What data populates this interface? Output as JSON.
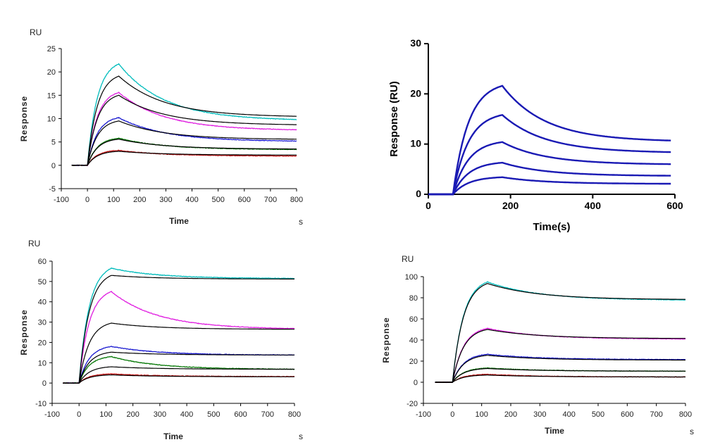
{
  "chart_data": [
    {
      "type": "line",
      "ylabel": "Response",
      "xlabel": "Time",
      "y_unit_label": "RU",
      "x_unit_label": "s",
      "xlim": [
        -100,
        800
      ],
      "ylim": [
        -5,
        25
      ],
      "xticks": [
        -100,
        0,
        100,
        200,
        300,
        400,
        500,
        600,
        700,
        800
      ],
      "yticks": [
        -5,
        0,
        5,
        10,
        15,
        20,
        25
      ],
      "grid": false,
      "legend": "none",
      "baseline_start": -60,
      "injection_start": 0,
      "injection_end": 120,
      "x_end": 800,
      "series": [
        {
          "color": "#00bcbc",
          "peak": 21.7,
          "final": 9.8
        },
        {
          "color": "#e01ee0",
          "peak": 15.6,
          "final": 7.6
        },
        {
          "color": "#1a1ad0",
          "peak": 10.2,
          "final": 5.2
        },
        {
          "color": "#0a7a0a",
          "peak": 5.8,
          "final": 3.4
        },
        {
          "color": "#c01010",
          "peak": 3.2,
          "final": 2.0
        }
      ],
      "fit": [
        {
          "peak": 19.1,
          "final": 10.5
        },
        {
          "peak": 15.0,
          "final": 8.7
        },
        {
          "peak": 9.5,
          "final": 5.6
        },
        {
          "peak": 5.6,
          "final": 3.5
        },
        {
          "peak": 3.0,
          "final": 2.2
        }
      ]
    },
    {
      "type": "line",
      "ylabel": "Response (RU)",
      "xlabel": "Time(s)",
      "xlim": [
        0,
        600
      ],
      "ylim": [
        0,
        30
      ],
      "xticks": [
        0,
        200,
        400,
        600
      ],
      "yticks": [
        0,
        10,
        20,
        30
      ],
      "grid": false,
      "legend": "none",
      "baseline_start": 0,
      "injection_start": 60,
      "injection_end": 180,
      "x_end": 590,
      "series": [
        {
          "color": "#1a1ab4",
          "peak": 21.6,
          "final": 10.7
        },
        {
          "color": "#1a1ab4",
          "peak": 15.8,
          "final": 8.4
        },
        {
          "color": "#1a1ab4",
          "peak": 10.4,
          "final": 6.0
        },
        {
          "color": "#1a1ab4",
          "peak": 6.3,
          "final": 3.7
        },
        {
          "color": "#1a1ab4",
          "peak": 3.4,
          "final": 2.1
        }
      ]
    },
    {
      "type": "line",
      "ylabel": "Response",
      "xlabel": "Time",
      "y_unit_label": "RU",
      "x_unit_label": "s",
      "xlim": [
        -100,
        800
      ],
      "ylim": [
        -10,
        60
      ],
      "xticks": [
        -100,
        0,
        100,
        200,
        300,
        400,
        500,
        600,
        700,
        800
      ],
      "yticks": [
        -10,
        0,
        10,
        20,
        30,
        40,
        50,
        60
      ],
      "grid": false,
      "legend": "none",
      "baseline_start": -60,
      "injection_start": 0,
      "injection_end": 120,
      "x_end": 800,
      "series": [
        {
          "color": "#00bcbc",
          "peak": 56.5,
          "final": 51.5
        },
        {
          "color": "#e01ee0",
          "peak": 45.0,
          "final": 26.8
        },
        {
          "color": "#1a1ad0",
          "peak": 18.0,
          "final": 13.8
        },
        {
          "color": "#0a7a0a",
          "peak": 13.0,
          "final": 6.8
        },
        {
          "color": "#c01010",
          "peak": 4.5,
          "final": 3.2
        }
      ],
      "fit": [
        {
          "peak": 53.0,
          "final": 51.2
        },
        {
          "peak": 29.5,
          "final": 26.5
        },
        {
          "peak": 15.2,
          "final": 13.8
        },
        {
          "peak": 8.0,
          "final": 6.8
        },
        {
          "peak": 4.0,
          "final": 3.1
        }
      ]
    },
    {
      "type": "line",
      "ylabel": "Response",
      "xlabel": "Time",
      "y_unit_label": "RU",
      "x_unit_label": "s",
      "xlim": [
        -100,
        800
      ],
      "ylim": [
        -20,
        100
      ],
      "xticks": [
        -100,
        0,
        100,
        200,
        300,
        400,
        500,
        600,
        700,
        800
      ],
      "yticks": [
        -20,
        0,
        20,
        40,
        60,
        80,
        100
      ],
      "grid": false,
      "legend": "none",
      "baseline_start": -60,
      "injection_start": 0,
      "injection_end": 120,
      "x_end": 800,
      "series": [
        {
          "color": "#00bcbc",
          "peak": 95.0,
          "final": 78.0
        },
        {
          "color": "#e01ee0",
          "peak": 51.0,
          "final": 41.0
        },
        {
          "color": "#1a1ad0",
          "peak": 26.5,
          "final": 21.5
        },
        {
          "color": "#0a7a0a",
          "peak": 13.5,
          "final": 10.5
        },
        {
          "color": "#c01010",
          "peak": 7.5,
          "final": 5.0
        }
      ],
      "fit": [
        {
          "peak": 93.5,
          "final": 78.5
        },
        {
          "peak": 50.0,
          "final": 41.5
        },
        {
          "peak": 25.5,
          "final": 21.0
        },
        {
          "peak": 13.0,
          "final": 10.5
        },
        {
          "peak": 6.8,
          "final": 5.0
        }
      ]
    }
  ]
}
